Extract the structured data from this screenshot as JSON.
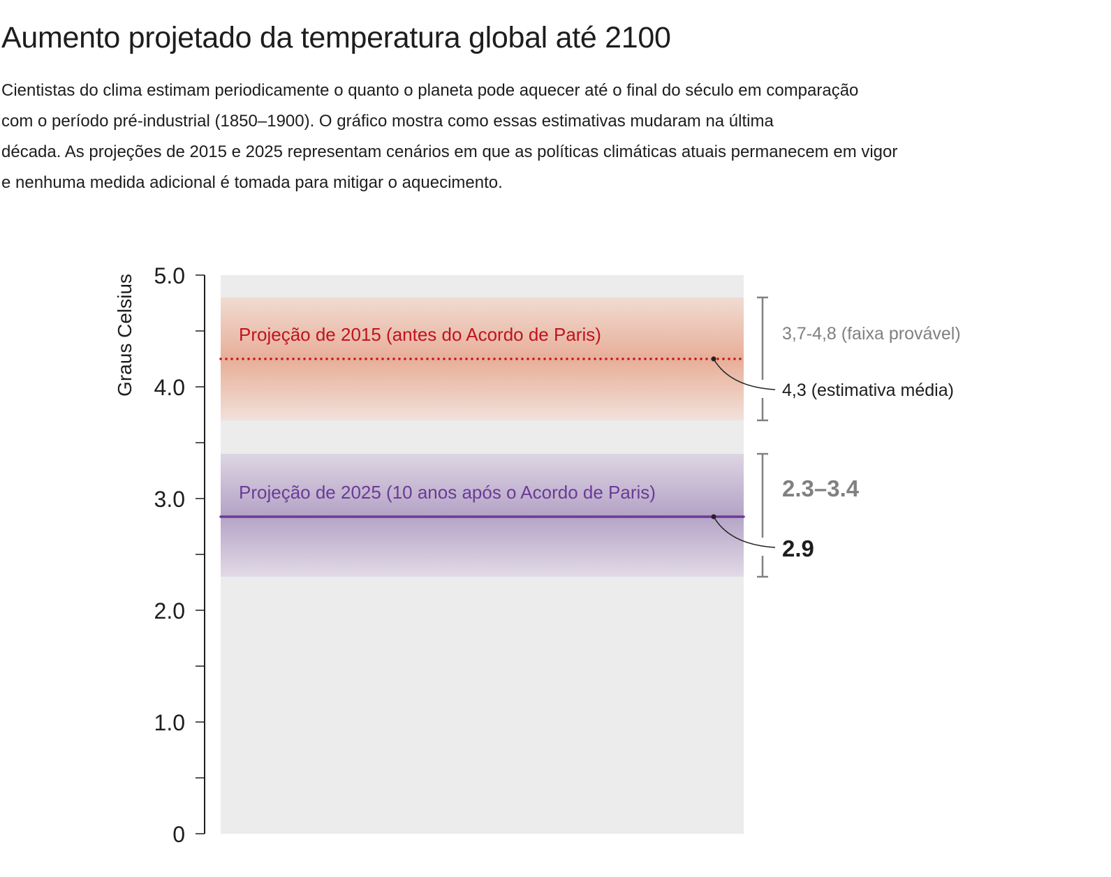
{
  "title": "Aumento projetado da temperatura global até 2100",
  "description_lines": [
    "Cientistas do clima estimam periodicamente o quanto o planeta pode aquecer até o final do século em comparação",
    "com o período pré-industrial (1850–1900). O gráfico mostra como essas estimativas mudaram na última",
    "década. As projeções de 2015 e 2025 representam cenários em que as políticas climáticas atuais permanecem em vigor",
    "e nenhuma medida adicional é tomada para mitigar o aquecimento."
  ],
  "chart_data": {
    "type": "range-band",
    "ylabel": "Graus Celsius",
    "ylim": [
      0,
      5
    ],
    "yticks": [
      0,
      1,
      2,
      3,
      4,
      5
    ],
    "ytick_labels": [
      "0",
      "1.0",
      "2.0",
      "3.0",
      "4.0",
      "5.0"
    ],
    "minor_tick_step": 0.5,
    "grid": false,
    "series": [
      {
        "name": "Projeção de 2015 (antes do Acordo de Paris)",
        "low": 3.7,
        "high": 4.8,
        "median": 4.3,
        "range_label": "3,7-4,8 (faixa provável)",
        "median_label": "4,3 (estimativa média)",
        "color": "#c0131e",
        "band_color": "#e8ae98",
        "line_style": "dotted"
      },
      {
        "name": "Projeção de 2025 (10 anos após o Acordo de Paris)",
        "low": 2.3,
        "high": 3.4,
        "median": 2.9,
        "range_label": "2.3–3.4",
        "median_label": "2.9",
        "color": "#6a3b96",
        "band_color": "#b5a3c6",
        "line_style": "solid"
      }
    ],
    "background_color": "#ebeceb"
  }
}
